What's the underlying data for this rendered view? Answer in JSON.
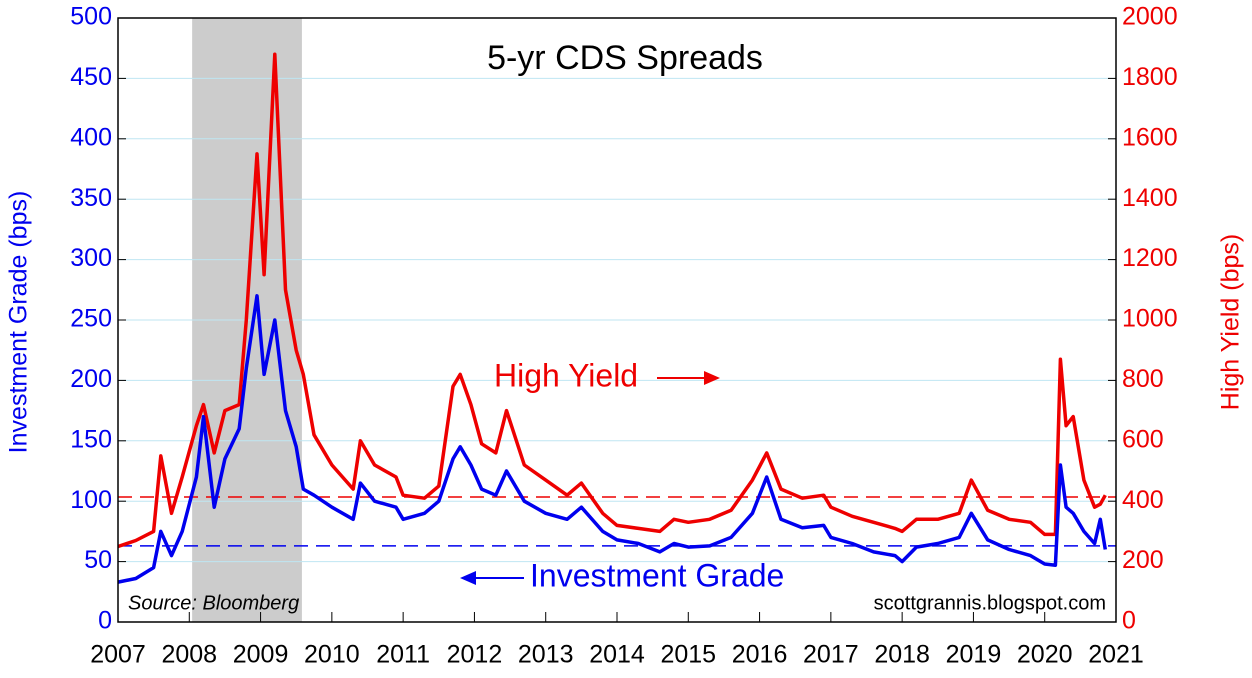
{
  "chart_data": {
    "type": "line",
    "title": "5-yr CDS Spreads",
    "y_label": "Investment Grade (bps)",
    "y2_label": "High Yield (bps)",
    "annotations": [
      "High Yield",
      "Investment Grade",
      "Source: Bloomberg",
      "scottgrannis.blogspot.com"
    ],
    "x": [
      2007.0,
      2007.25,
      2007.5,
      2007.6,
      2007.75,
      2007.9,
      2008.1,
      2008.2,
      2008.35,
      2008.5,
      2008.7,
      2008.8,
      2008.95,
      2009.05,
      2009.2,
      2009.35,
      2009.5,
      2009.6,
      2009.75,
      2010.0,
      2010.3,
      2010.4,
      2010.6,
      2010.9,
      2011.0,
      2011.3,
      2011.5,
      2011.7,
      2011.8,
      2011.95,
      2012.1,
      2012.3,
      2012.45,
      2012.7,
      2013.0,
      2013.3,
      2013.5,
      2013.8,
      2014.0,
      2014.3,
      2014.6,
      2014.8,
      2015.0,
      2015.3,
      2015.6,
      2015.9,
      2016.1,
      2016.3,
      2016.6,
      2016.9,
      2017.0,
      2017.3,
      2017.6,
      2017.9,
      2018.0,
      2018.2,
      2018.5,
      2018.8,
      2018.97,
      2019.2,
      2019.5,
      2019.8,
      2020.0,
      2020.15,
      2020.22,
      2020.3,
      2020.4,
      2020.55,
      2020.7,
      2020.78,
      2020.85
    ],
    "series": [
      {
        "name": "Investment Grade",
        "color": "#0000ee",
        "axis": "y",
        "values": [
          33,
          36,
          45,
          75,
          55,
          75,
          120,
          170,
          95,
          135,
          160,
          210,
          270,
          205,
          250,
          175,
          145,
          110,
          105,
          95,
          85,
          115,
          100,
          95,
          85,
          90,
          100,
          135,
          145,
          130,
          110,
          105,
          125,
          100,
          90,
          85,
          95,
          75,
          68,
          65,
          58,
          65,
          62,
          63,
          70,
          90,
          120,
          85,
          78,
          80,
          70,
          65,
          58,
          55,
          50,
          62,
          65,
          70,
          90,
          68,
          60,
          55,
          48,
          47,
          130,
          95,
          90,
          75,
          65,
          85,
          60
        ]
      },
      {
        "name": "High Yield",
        "color": "#ee0000",
        "axis": "y2",
        "values": [
          250,
          270,
          300,
          550,
          360,
          480,
          650,
          720,
          560,
          700,
          720,
          1000,
          1550,
          1150,
          1880,
          1100,
          900,
          820,
          620,
          520,
          440,
          600,
          520,
          480,
          420,
          410,
          450,
          780,
          820,
          720,
          590,
          560,
          700,
          520,
          470,
          420,
          460,
          360,
          320,
          310,
          300,
          340,
          330,
          340,
          370,
          470,
          560,
          440,
          410,
          420,
          380,
          350,
          330,
          310,
          300,
          340,
          340,
          360,
          470,
          370,
          340,
          330,
          290,
          290,
          870,
          650,
          680,
          470,
          380,
          390,
          420
        ]
      }
    ],
    "hlines": [
      {
        "value": 63,
        "axis": "y",
        "color": "#0000ee"
      },
      {
        "value": 414,
        "axis": "y2",
        "color": "#ee0000"
      }
    ],
    "shaded_regions": [
      {
        "x": [
          2008.04,
          2009.58
        ],
        "color": "#cccccc"
      }
    ],
    "xlim": [
      2007,
      2021
    ],
    "xticks": [
      2007,
      2008,
      2009,
      2010,
      2011,
      2012,
      2013,
      2014,
      2015,
      2016,
      2017,
      2018,
      2019,
      2020,
      2021
    ],
    "ylim": [
      0,
      500
    ],
    "yticks": [
      0,
      50,
      100,
      150,
      200,
      250,
      300,
      350,
      400,
      450,
      500
    ],
    "y2lim": [
      0,
      2000
    ],
    "y2ticks": [
      0,
      200,
      400,
      600,
      800,
      1000,
      1200,
      1400,
      1600,
      1800,
      2000
    ],
    "grid": true,
    "y_color": "#0000ee",
    "y2_color": "#ee0000"
  }
}
